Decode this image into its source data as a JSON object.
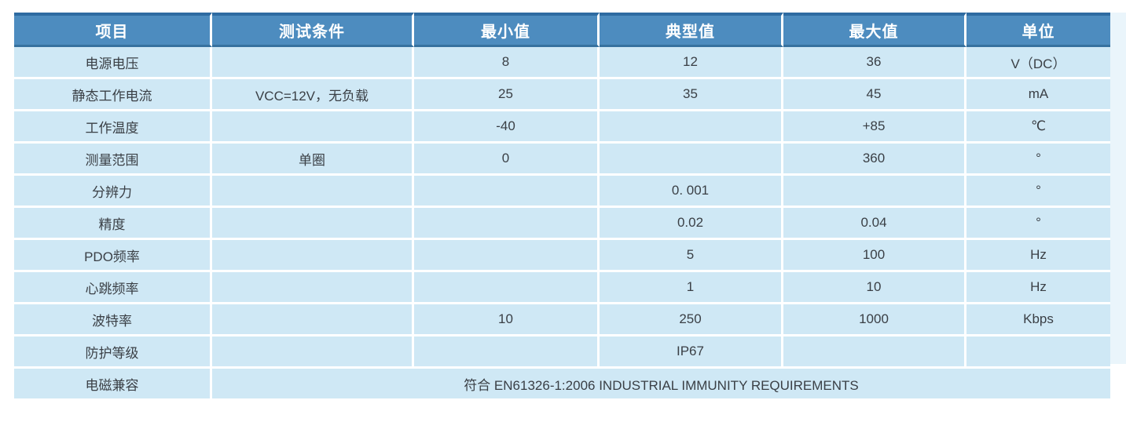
{
  "table": {
    "columns": [
      "项目",
      "测试条件",
      "最小值",
      "典型值",
      "最大值",
      "单位"
    ],
    "rows": [
      {
        "item": "电源电压",
        "condition": "",
        "min": "8",
        "typ": "12",
        "max": "36",
        "unit": "V（DC）"
      },
      {
        "item": "静态工作电流",
        "condition": "VCC=12V，无负载",
        "min": "25",
        "typ": "35",
        "max": "45",
        "unit": "mA"
      },
      {
        "item": "工作温度",
        "condition": "",
        "min": "-40",
        "typ": "",
        "max": "+85",
        "unit": "℃"
      },
      {
        "item": "测量范围",
        "condition": "单圈",
        "min": "0",
        "typ": "",
        "max": "360",
        "unit": "°"
      },
      {
        "item": "分辨力",
        "condition": "",
        "min": "",
        "typ": "0. 001",
        "max": "",
        "unit": "°"
      },
      {
        "item": "精度",
        "condition": "",
        "min": "",
        "typ": "0.02",
        "max": "0.04",
        "unit": "°"
      },
      {
        "item": "PDO频率",
        "condition": "",
        "min": "",
        "typ": "5",
        "max": "100",
        "unit": "Hz"
      },
      {
        "item": "心跳频率",
        "condition": "",
        "min": "",
        "typ": "1",
        "max": "10",
        "unit": "Hz"
      },
      {
        "item": "波特率",
        "condition": "",
        "min": "10",
        "typ": "250",
        "max": "1000",
        "unit": "Kbps"
      },
      {
        "item": "防护等级",
        "condition": "",
        "min": "",
        "typ": "IP67",
        "max": "",
        "unit": ""
      }
    ],
    "merged_row": {
      "item": "电磁兼容",
      "value": "符合 EN61326-1:2006 INDUSTRIAL IMMUNITY REQUIREMENTS"
    }
  },
  "colors": {
    "header_bg": "#4d8cbf",
    "header_top_border": "#2e6ba1",
    "header_bottom_border": "#36719f",
    "header_text": "#ffffff",
    "row_bg": "#cfe8f5",
    "body_text": "#3a3f45",
    "edge_strip": "#eaf5fb"
  }
}
